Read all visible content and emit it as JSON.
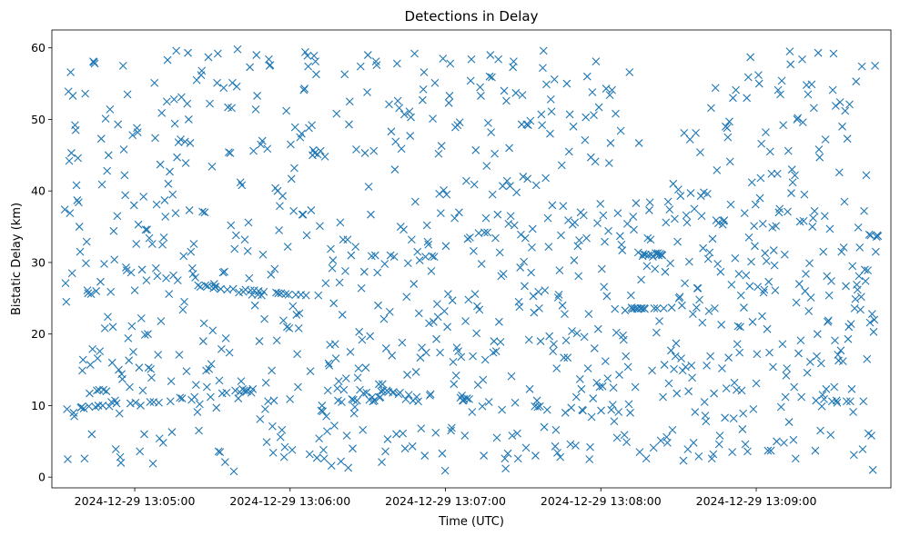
{
  "chart_data": {
    "type": "scatter",
    "title": "Detections in Delay",
    "xlabel": "Time (UTC)",
    "ylabel": "Bistatic Delay (km)",
    "marker": "x",
    "marker_color": "#1f77b4",
    "x_start": "2024-12-29 13:04:33",
    "x_end": "2024-12-29 13:09:47",
    "xlim": [
      "2024-12-29 13:04:28",
      "2024-12-29 13:09:52"
    ],
    "ylim": [
      -1.5,
      62.5
    ],
    "x_ticks": [
      "2024-12-29 13:05:00",
      "2024-12-29 13:06:00",
      "2024-12-29 13:07:00",
      "2024-12-29 13:08:00",
      "2024-12-29 13:09:00"
    ],
    "y_ticks": [
      0,
      10,
      20,
      30,
      40,
      50,
      60
    ],
    "grid": false,
    "legend": "none",
    "points_y": [
      37.4,
      27.1,
      24.5,
      9.5,
      2.5,
      53.9,
      44.2,
      36.9,
      56.6,
      45.3,
      28.5,
      53.3,
      9.0,
      8.5,
      49.2,
      48.5,
      40.8,
      38.7,
      44.6,
      38.4,
      35.0,
      31.5,
      9.7,
      9.8,
      14.9,
      16.4,
      9.6,
      2.6,
      53.6,
      29.9,
      32.9,
      26.1,
      25.7,
      9.9,
      11.7,
      15.7,
      25.6,
      6.0,
      17.9,
      58.1,
      58.0,
      57.8,
      9.8,
      26.0,
      12.1,
      16.6,
      10.0,
      12.2,
      17.6,
      27.3,
      47.3,
      40.9,
      10.0,
      12.2,
      29.8,
      20.8,
      50.1,
      12.0,
      42.8,
      22.4,
      45.0,
      9.9,
      51.4,
      25.9,
      10.5,
      16.0,
      21.0,
      34.4,
      30.4,
      10.7,
      3.9,
      10.3,
      36.5,
      49.3,
      15.0,
      8.9,
      2.8,
      2.0,
      14.4,
      13.7,
      57.5,
      45.8,
      42.2,
      39.4,
      29.3,
      28.9,
      53.5,
      19.4,
      16.3,
      12.6,
      10.3,
      28.6,
      21.1,
      47.8,
      17.5,
      38.0,
      26.1,
      10.4,
      32.6,
      48.8,
      48.2,
      35.3,
      15.3,
      3.6,
      10.0,
      22.2,
      29.0,
      12.1,
      39.2,
      6.0,
      19.9,
      34.6,
      27.5,
      34.6,
      20.0,
      15.3,
      33.4,
      10.5,
      15.1,
      13.9,
      32.6,
      1.9,
      10.5,
      55.1,
      47.4,
      29.2,
      38.1,
      28.1,
      17.1,
      10.4,
      5.4,
      43.7,
      21.8,
      50.9,
      32.5,
      4.8,
      33.5,
      38.7,
      36.4,
      27.8,
      52.5,
      58.3,
      41.0,
      25.6,
      42.7,
      10.6,
      13.4,
      6.3,
      39.5,
      28.2,
      52.8,
      49.4,
      36.9,
      59.6,
      44.7,
      27.5,
      46.8,
      17.1,
      11.1,
      47.2,
      53.1,
      11.0,
      23.4,
      30.9,
      24.5,
      46.9,
      43.9,
      14.8,
      52.2,
      59.3,
      50.0,
      37.3,
      46.7,
      31.5,
      10.8,
      29.2,
      28.4,
      32.6,
      11.2,
      27.9,
      12.9,
      55.5,
      9.1,
      26.8,
      6.5,
      10.2,
      26.6,
      56.2,
      56.8,
      37.1,
      19.0,
      21.5,
      37.0,
      26.8,
      14.9,
      12.6,
      26.7,
      58.7,
      15.1,
      52.2,
      11.2,
      15.8,
      43.4,
      20.5,
      26.4,
      27.0,
      26.6,
      26.6,
      9.7,
      55.1,
      59.2,
      3.6,
      13.5,
      3.5,
      26.3,
      17.9,
      11.7,
      28.6,
      54.4,
      28.7,
      2.1,
      19.4,
      11.8,
      26.2,
      51.7,
      45.4,
      17.4,
      45.3,
      35.2,
      51.6,
      55.1,
      26.3,
      0.8,
      31.9,
      12.1,
      33.8,
      54.6,
      59.8,
      11.0,
      25.8,
      11.9,
      41.2,
      13.4,
      40.8,
      12.3,
      25.9,
      12.1,
      33.2,
      26.2,
      12.1,
      12.0,
      31.6,
      35.6,
      27.8,
      57.3,
      26.1,
      11.8,
      25.5,
      12.3,
      45.6,
      26.1,
      24.0,
      51.4,
      59.0,
      53.3,
      25.5,
      26.0,
      19.0,
      8.1,
      46.5,
      25.4,
      47.0,
      31.1,
      25.9,
      22.1,
      9.5,
      13.2,
      4.9,
      45.9,
      10.6,
      58.4,
      57.5,
      57.6,
      28.3,
      14.9,
      7.1,
      3.4,
      10.7,
      29.1,
      40.4,
      25.8,
      19.1,
      40.0,
      25.7,
      34.5,
      37.9,
      5.6,
      25.7,
      6.6,
      39.3,
      21.9,
      2.8,
      4.2,
      25.6,
      51.2,
      21.0,
      32.2,
      25.5,
      20.8,
      10.9,
      46.5,
      41.7,
      3.8,
      23.9,
      37.2,
      43.2,
      48.9,
      25.5,
      22.7,
      17.2,
      12.6,
      20.8,
      22.9,
      47.5,
      25.5,
      48.0,
      36.7,
      36.7,
      54.1,
      54.3,
      59.4,
      25.4,
      33.8,
      58.9,
      57.4,
      48.8,
      3.2,
      14.8,
      37.3,
      49.2,
      45.0,
      45.7,
      58.9,
      45.3,
      58.1,
      56.3,
      2.7,
      45.1,
      25.4,
      5.4,
      35.1,
      45.6,
      9.3,
      10.0,
      9.2,
      3.8,
      2.6,
      44.8,
      27.1,
      8.5,
      6.4,
      12.1,
      15.9,
      15.6,
      18.5,
      31.9,
      1.6,
      29.2,
      30.3,
      24.3,
      7.2,
      18.6,
      16.6,
      50.8,
      12.4,
      10.7,
      13.4,
      27.2,
      35.6,
      2.2,
      10.5,
      22.7,
      33.2,
      12.2,
      56.3,
      28.8,
      13.8,
      5.8,
      33.2,
      1.3,
      49.3,
      52.5,
      17.5,
      31.0,
      10.9,
      4.0,
      10.8,
      8.9,
      9.8,
      32.2,
      45.8,
      10.7,
      13.9,
      15.2,
      20.3,
      12.2,
      57.4,
      26.4,
      19.2,
      6.6,
      11.7,
      28.7,
      45.3,
      15.3,
      11.8,
      53.8,
      59.0,
      40.6,
      10.8,
      19.7,
      36.7,
      30.9,
      11.2,
      10.6,
      45.6,
      10.7,
      31.0,
      58.1,
      57.6,
      28.6,
      24.0,
      13.0,
      11.1,
      11.2,
      12.0,
      2.1,
      13.0,
      12.1,
      22.1,
      29.8,
      3.6,
      18.0,
      12.1,
      5.3,
      11.9,
      52.1,
      23.1,
      31.0,
      48.3,
      17.0,
      11.8,
      11.9,
      30.8,
      43.0,
      46.9,
      6.0,
      57.8,
      52.6,
      11.6,
      51.6,
      11.8,
      35.0,
      45.9,
      18.8,
      6.1,
      34.6,
      50.7,
      4.0,
      10.9,
      25.2,
      14.3,
      29.9,
      11.5,
      51.1,
      47.7,
      50.3,
      33.2,
      4.3,
      10.7,
      27.0,
      59.2,
      38.5,
      14.7,
      11.2,
      31.5,
      10.6,
      22.9,
      30.3,
      16.7,
      6.8,
      18.1,
      52.7,
      54.2,
      56.6,
      3.0,
      30.8,
      17.4,
      35.2,
      32.9,
      32.5,
      21.5,
      11.4,
      11.6,
      28.8,
      30.9,
      50.1,
      21.7,
      30.8,
      55.1,
      6.2,
      19.3,
      24.2,
      22.4,
      45.2,
      39.6,
      17.4,
      36.9,
      46.3,
      3.3,
      58.5,
      40.1,
      23.2,
      0.9,
      32.3,
      39.5,
      21.0,
      25.6,
      52.3,
      53.3,
      57.8,
      6.5,
      6.9,
      24.7,
      16.1,
      13.0,
      36.2,
      48.9,
      14.2,
      18.1,
      49.2,
      17.6,
      37.0,
      49.6,
      11.1,
      16.8,
      11.4,
      10.7,
      10.7,
      10.9,
      5.8,
      21.8,
      41.4,
      11.0,
      33.3,
      24.8,
      10.9,
      33.5,
      55.4,
      58.4,
      9.1,
      16.9,
      31.6,
      40.9,
      25.6,
      45.7,
      20.1,
      23.9,
      12.9,
      34.1,
      23.4,
      54.5,
      53.3,
      29.8,
      9.9,
      13.6,
      3.0,
      34.2,
      16.4,
      36.2,
      43.5,
      34.2,
      49.5,
      10.5,
      56.0,
      59.0,
      48.2,
      55.9,
      39.5,
      17.4,
      19.0,
      45.2,
      33.4,
      17.6,
      5.5,
      36.7,
      58.4,
      21.7,
      31.4,
      18.9,
      28.1,
      9.4,
      40.7,
      28.4,
      54.0,
      2.6,
      1.2,
      52.6,
      41.4,
      3.3,
      35.4,
      46.0,
      40.7,
      36.5,
      14.1,
      5.8,
      57.3,
      58.1,
      35.2,
      10.4,
      53.7,
      39.8,
      6.1,
      2.6,
      24.5,
      23.8,
      29.3,
      33.9,
      49.3,
      53.4,
      42.0,
      30.1,
      26.7,
      33.4,
      4.1,
      49.3,
      41.7,
      49.2,
      19.2,
      12.3,
      49.8,
      28.6,
      32.1,
      34.7,
      25.3,
      23.0,
      9.9,
      3.0,
      40.8,
      10.7,
      9.8,
      25.9,
      23.6,
      9.9,
      19.0,
      50.7,
      49.2,
      57.2,
      59.6,
      7.0,
      26.1,
      41.8,
      54.9,
      9.4,
      36.2,
      32.2,
      19.7,
      48.0,
      52.8,
      51.1,
      38.0,
      17.6,
      18.6,
      55.6,
      4.3,
      6.6,
      15.2,
      3.4,
      25.1,
      25.5,
      28.9,
      2.8,
      33.8,
      43.6,
      24.0,
      37.9,
      16.7,
      22.8,
      9.0,
      19.1,
      55.0,
      16.7,
      35.9,
      45.5,
      50.7,
      4.6,
      9.7,
      20.4,
      35.3,
      49.0,
      30.3,
      35.6,
      4.4,
      11.2,
      20.1,
      32.3,
      28.1,
      33.1,
      13.7,
      37.0,
      12.3,
      9.4,
      9.3,
      36.6,
      19.6,
      47.1,
      50.3,
      33.4,
      56.0,
      15.2,
      22.8,
      2.5,
      4.2,
      44.7,
      8.4,
      53.8,
      11.0,
      50.6,
      18.0,
      44.1,
      58.1,
      13.2,
      35.5,
      20.7,
      51.7,
      12.6,
      38.2,
      9.3,
      29.1,
      12.7,
      36.6,
      26.6,
      32.9,
      16.2,
      54.3,
      25.3,
      13.8,
      34.4,
      43.9,
      53.4,
      46.7,
      9.4,
      54.1,
      10.1,
      12.5,
      7.8,
      23.5,
      50.8,
      20.2,
      5.5,
      36.9,
      9.1,
      14.3,
      33.7,
      48.4,
      32.5,
      31.7,
      19.8,
      19.2,
      5.9,
      23.3,
      16.9,
      4.9,
      35.4,
      15.4,
      10.2,
      56.6,
      9.0,
      25.4,
      23.7,
      23.5,
      36.4,
      34.6,
      23.6,
      12.6,
      38.3,
      23.6,
      23.5,
      31.4,
      46.7,
      3.5,
      23.6,
      27.6,
      23.6,
      30.9,
      31.2,
      23.6,
      23.5,
      31.1,
      2.6,
      29.5,
      33.4,
      31.0,
      37.3,
      38.4,
      33.2,
      31.1,
      14.9,
      30.8,
      4.1,
      23.6,
      29.1,
      31.3,
      20.2,
      23.6,
      31.3,
      31.0,
      21.8,
      31.2,
      5.1,
      31.1,
      31.0,
      11.2,
      23.6,
      15.7,
      28.7,
      35.6,
      5.6,
      4.8,
      38.5,
      13.1,
      37.4,
      29.9,
      17.7,
      23.7,
      6.6,
      41.0,
      15.1,
      36.1,
      16.9,
      18.7,
      11.7,
      32.9,
      40.2,
      25.0,
      25.2,
      39.3,
      16.6,
      24.0,
      14.9,
      2.3,
      48.1,
      27.1,
      15.4,
      36.6,
      35.6,
      3.9,
      12.0,
      30.1,
      47.2,
      39.7,
      15.6,
      13.9,
      22.8,
      4.8,
      37.5,
      9.1,
      48.1,
      23.7,
      26.4,
      26.4,
      2.9,
      24.8,
      45.4,
      39.3,
      36.5,
      21.6,
      32.0,
      39.8,
      10.5,
      8.6,
      7.8,
      15.6,
      39.6,
      30.5,
      23.2,
      31.4,
      16.9,
      51.6,
      2.6,
      33.3,
      3.2,
      11.7,
      23.6,
      54.4,
      35.9,
      42.9,
      29.8,
      35.5,
      4.6,
      5.8,
      28.7,
      21.3,
      15.2,
      35.3,
      35.8,
      35.9,
      8.3,
      49.0,
      12.4,
      48.8,
      47.5,
      16.7,
      49.7,
      44.1,
      38.1,
      26.9,
      3.5,
      53.0,
      8.2,
      13.2,
      30.6,
      54.1,
      12.2,
      18.6,
      21.1,
      28.4,
      17.4,
      21.0,
      25.4,
      12.1,
      6.7,
      8.9,
      23.7,
      36.9,
      4.6,
      28.2,
      53.0,
      3.6,
      55.9,
      33.5,
      26.7,
      58.7,
      30.1,
      41.2,
      21.7,
      9.5,
      35.1,
      32.3,
      38.1,
      13.1,
      17.2,
      26.6,
      56.2,
      55.0,
      39.0,
      41.8,
      46.6,
      22.5,
      35.4,
      25.8,
      26.2,
      31.3,
      48.2,
      30.2,
      20.7,
      3.7,
      27.3,
      17.4,
      45.5,
      3.7,
      42.4,
      34.9,
      15.4,
      31.7,
      29.6,
      26.1,
      35.1,
      5.0,
      42.4,
      54.1,
      37.0,
      37.5,
      53.5,
      9.8,
      55.4,
      18.6,
      49.2,
      4.8,
      31.1,
      11.2,
      14.2,
      15.2,
      37.1,
      45.6,
      7.7,
      59.5,
      57.7,
      39.7,
      43.0,
      41.2,
      5.2,
      12.6,
      42.2,
      2.6,
      24.4,
      50.0,
      50.2,
      17.3,
      27.0,
      35.7,
      19.1,
      11.2,
      58.4,
      49.6,
      35.8,
      39.5,
      26.0,
      28.4,
      54.8,
      14.6,
      53.5,
      23.2,
      29.9,
      16.1,
      25.1,
      54.9,
      35.0,
      36.2,
      51.6,
      37.2,
      3.7,
      10.7,
      16.9,
      20.0,
      59.3,
      45.8,
      44.7,
      6.5,
      15.9,
      9.9,
      11.5,
      31.5,
      10.9,
      36.5,
      47.2,
      12.3,
      28.1,
      21.7,
      21.9,
      25.4,
      34.7,
      5.9,
      27.4,
      10.6,
      54.1,
      59.2,
      12.6,
      19.1,
      51.9,
      10.7,
      10.4,
      17.1,
      16.3,
      42.6,
      52.4,
      17.7,
      31.5,
      49.0,
      16.2,
      32.1,
      38.5,
      51.2,
      26.7,
      10.6,
      47.3,
      19.3,
      21.0,
      52.1,
      10.6,
      21.4,
      12.3,
      29.5,
      9.1,
      3.1,
      23.6,
      24.9,
      55.3,
      26.9,
      26.2,
      34.9,
      28.1,
      32.1,
      23.4,
      25.2,
      57.4,
      3.9,
      10.6,
      37.2,
      29.0,
      27.4,
      42.2,
      16.5,
      28.9,
      6.1,
      33.9,
      21.6,
      33.8,
      5.8,
      22.8,
      1.0,
      20.3,
      22.0,
      57.5,
      31.5,
      33.6,
      33.8,
      33.7
    ]
  }
}
